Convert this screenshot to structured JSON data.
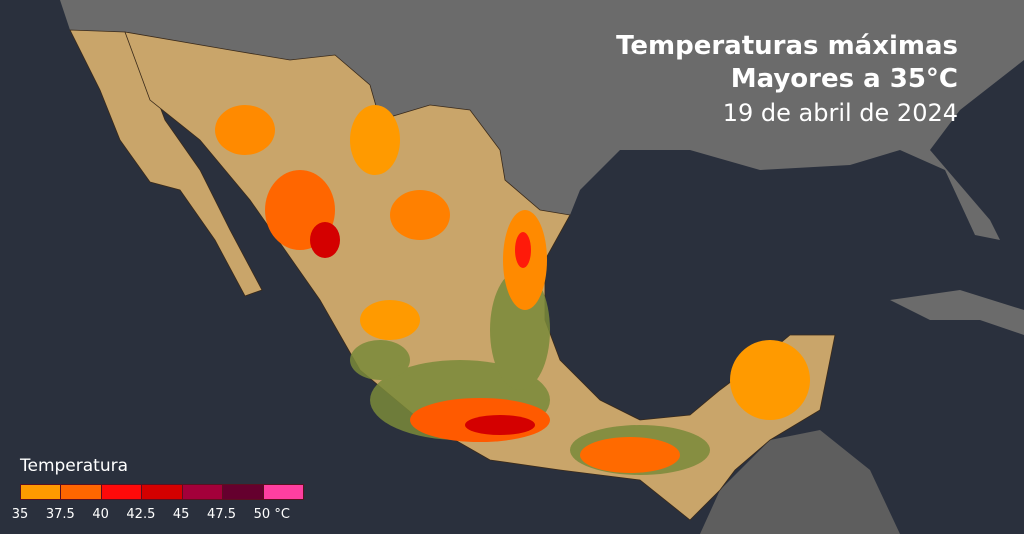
{
  "title": {
    "line1": "Temperaturas máximas",
    "line2": "Mayores a 35°C",
    "date": "19 de abril de 2024"
  },
  "legend": {
    "title": "Temperatura",
    "unit": "°C",
    "ticks": [
      "35",
      "37.5",
      "40",
      "42.5",
      "45",
      "47.5",
      "50 °C"
    ],
    "colors": [
      "#ff9a00",
      "#ff6600",
      "#ff0a0a",
      "#d40000",
      "#a3003a",
      "#65002e",
      "#ff3fa0"
    ]
  },
  "map_colors": {
    "ocean": "#2a303d",
    "neighbor_land": "#6b6b6b",
    "land_base": "#c9a56a",
    "vegetation": "#7a8a3a"
  }
}
